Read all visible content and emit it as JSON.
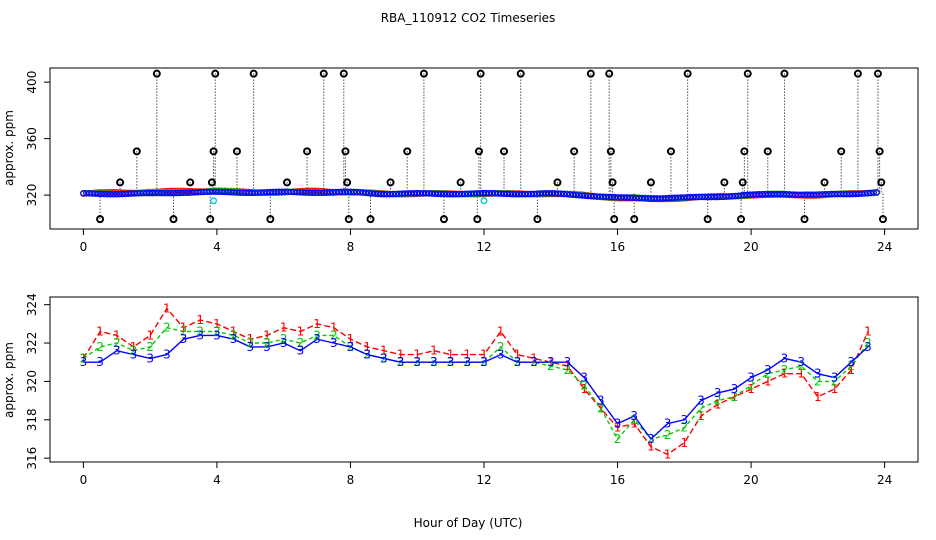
{
  "chart_data": [
    {
      "type": "scatter",
      "title": "RBA_110912  CO2 Timeseries",
      "xlabel": "",
      "ylabel": "approx. ppm",
      "xlim": [
        -1,
        25
      ],
      "ylim": [
        296,
        410
      ],
      "xticks": [
        0,
        4,
        8,
        12,
        16,
        20,
        24
      ],
      "yticks": [
        320,
        360,
        400
      ],
      "colors": {
        "series1": "#ff0000",
        "series2": "#00cc00",
        "series3": "#0000ff",
        "flag": "#00cccc",
        "outlier": "#000000"
      },
      "series": [
        {
          "name": "1",
          "x": [
            0,
            1,
            2,
            3,
            4,
            5,
            6,
            7,
            8,
            9,
            10,
            11,
            12,
            13,
            14,
            15,
            16,
            17,
            18,
            19,
            20,
            21,
            22,
            23,
            23.8
          ],
          "y": [
            321,
            322,
            322,
            323,
            323,
            322,
            322,
            323,
            322,
            321,
            321,
            321,
            321,
            321,
            321,
            320,
            318,
            317,
            318,
            319,
            320,
            320,
            320,
            321,
            322
          ]
        },
        {
          "name": "2",
          "x": [
            0,
            1,
            2,
            3,
            4,
            5,
            6,
            7,
            8,
            9,
            10,
            11,
            12,
            13,
            14,
            15,
            16,
            17,
            18,
            19,
            20,
            21,
            22,
            23,
            23.8
          ],
          "y": [
            321,
            321,
            322,
            322,
            323,
            322,
            322,
            322,
            322,
            321,
            321,
            321,
            321,
            321,
            321,
            320,
            318,
            318,
            318,
            319,
            320,
            321,
            320,
            321,
            322
          ]
        },
        {
          "name": "3",
          "x": [
            0,
            1,
            2,
            3,
            4,
            5,
            6,
            7,
            8,
            9,
            10,
            11,
            12,
            13,
            14,
            15,
            16,
            17,
            18,
            19,
            20,
            21,
            22,
            23,
            23.8
          ],
          "y": [
            321,
            321,
            321,
            322,
            322,
            322,
            322,
            322,
            322,
            321,
            321,
            321,
            321,
            321,
            321,
            320,
            318,
            318,
            318,
            319,
            320,
            321,
            320,
            321,
            322
          ]
        }
      ],
      "flagged": [
        {
          "x": 3.9,
          "y": 316
        },
        {
          "x": 12.0,
          "y": 316
        }
      ],
      "outliers": [
        {
          "x": 0.5,
          "y": 303
        },
        {
          "x": 1.1,
          "y": 329
        },
        {
          "x": 1.6,
          "y": 351
        },
        {
          "x": 2.2,
          "y": 406
        },
        {
          "x": 2.7,
          "y": 303
        },
        {
          "x": 3.2,
          "y": 329
        },
        {
          "x": 3.8,
          "y": 303
        },
        {
          "x": 3.85,
          "y": 329
        },
        {
          "x": 3.9,
          "y": 351
        },
        {
          "x": 3.95,
          "y": 406
        },
        {
          "x": 4.6,
          "y": 351
        },
        {
          "x": 5.1,
          "y": 406
        },
        {
          "x": 5.6,
          "y": 303
        },
        {
          "x": 6.1,
          "y": 329
        },
        {
          "x": 6.7,
          "y": 351
        },
        {
          "x": 7.2,
          "y": 406
        },
        {
          "x": 7.8,
          "y": 406
        },
        {
          "x": 7.85,
          "y": 351
        },
        {
          "x": 7.9,
          "y": 329
        },
        {
          "x": 7.95,
          "y": 303
        },
        {
          "x": 8.6,
          "y": 303
        },
        {
          "x": 9.2,
          "y": 329
        },
        {
          "x": 9.7,
          "y": 351
        },
        {
          "x": 10.2,
          "y": 406
        },
        {
          "x": 10.8,
          "y": 303
        },
        {
          "x": 11.3,
          "y": 329
        },
        {
          "x": 11.8,
          "y": 303
        },
        {
          "x": 11.85,
          "y": 351
        },
        {
          "x": 11.9,
          "y": 406
        },
        {
          "x": 12.6,
          "y": 351
        },
        {
          "x": 13.1,
          "y": 406
        },
        {
          "x": 13.6,
          "y": 303
        },
        {
          "x": 14.2,
          "y": 329
        },
        {
          "x": 14.7,
          "y": 351
        },
        {
          "x": 15.2,
          "y": 406
        },
        {
          "x": 15.75,
          "y": 406
        },
        {
          "x": 15.8,
          "y": 351
        },
        {
          "x": 15.85,
          "y": 329
        },
        {
          "x": 15.9,
          "y": 303
        },
        {
          "x": 16.5,
          "y": 303
        },
        {
          "x": 17.0,
          "y": 329
        },
        {
          "x": 17.6,
          "y": 351
        },
        {
          "x": 18.1,
          "y": 406
        },
        {
          "x": 18.7,
          "y": 303
        },
        {
          "x": 19.2,
          "y": 329
        },
        {
          "x": 19.7,
          "y": 303
        },
        {
          "x": 19.75,
          "y": 329
        },
        {
          "x": 19.8,
          "y": 351
        },
        {
          "x": 19.9,
          "y": 406
        },
        {
          "x": 20.5,
          "y": 351
        },
        {
          "x": 21.0,
          "y": 406
        },
        {
          "x": 21.6,
          "y": 303
        },
        {
          "x": 22.2,
          "y": 329
        },
        {
          "x": 22.7,
          "y": 351
        },
        {
          "x": 23.2,
          "y": 406
        },
        {
          "x": 23.8,
          "y": 406
        },
        {
          "x": 23.85,
          "y": 351
        },
        {
          "x": 23.9,
          "y": 329
        },
        {
          "x": 23.95,
          "y": 303
        }
      ]
    },
    {
      "type": "line",
      "title": "",
      "xlabel": "Hour of Day (UTC)",
      "ylabel": "approx. ppm",
      "xlim": [
        -1,
        25
      ],
      "ylim": [
        315.8,
        324.4
      ],
      "xticks": [
        0,
        4,
        8,
        12,
        16,
        20,
        24
      ],
      "yticks": [
        316,
        318,
        320,
        322,
        324
      ],
      "colors": {
        "series1": "#ff0000",
        "series2": "#00cc00",
        "series3": "#0000ff"
      },
      "series": [
        {
          "name": "1",
          "marker": "1",
          "x": [
            0,
            0.5,
            1,
            1.5,
            2,
            2.5,
            3,
            3.5,
            4,
            4.5,
            5,
            5.5,
            6,
            6.5,
            7,
            7.5,
            8,
            8.5,
            9,
            9.5,
            10,
            10.5,
            11,
            11.5,
            12,
            12.5,
            13,
            13.5,
            14,
            14.5,
            15,
            15.5,
            16,
            16.5,
            17,
            17.5,
            18,
            18.5,
            19,
            19.5,
            20,
            20.5,
            21,
            21.5,
            22,
            22.5,
            23,
            23.5
          ],
          "y": [
            321.2,
            322.6,
            322.4,
            321.8,
            322.4,
            323.8,
            322.8,
            323.2,
            323.0,
            322.6,
            322.2,
            322.4,
            322.8,
            322.6,
            323.0,
            322.8,
            322.2,
            321.8,
            321.6,
            321.4,
            321.4,
            321.6,
            321.4,
            321.4,
            321.4,
            322.6,
            321.4,
            321.2,
            321.0,
            320.8,
            319.6,
            318.6,
            317.6,
            317.8,
            316.6,
            316.2,
            316.8,
            318.2,
            318.8,
            319.2,
            319.6,
            320.0,
            320.4,
            320.4,
            319.2,
            319.6,
            320.6,
            322.6
          ]
        },
        {
          "name": "2",
          "marker": "2",
          "x": [
            0,
            0.5,
            1,
            1.5,
            2,
            2.5,
            3,
            3.5,
            4,
            4.5,
            5,
            5.5,
            6,
            6.5,
            7,
            7.5,
            8,
            8.5,
            9,
            9.5,
            10,
            10.5,
            11,
            11.5,
            12,
            12.5,
            13,
            13.5,
            14,
            14.5,
            15,
            15.5,
            16,
            16.5,
            17,
            17.5,
            18,
            18.5,
            19,
            19.5,
            20,
            20.5,
            21,
            21.5,
            22,
            22.5,
            23,
            23.5
          ],
          "y": [
            321.2,
            321.8,
            322.0,
            321.6,
            321.8,
            322.8,
            322.6,
            322.6,
            322.6,
            322.4,
            322.0,
            322.0,
            322.2,
            322.0,
            322.4,
            322.4,
            321.8,
            321.4,
            321.2,
            321.0,
            321.0,
            321.0,
            321.0,
            321.0,
            321.0,
            321.8,
            321.0,
            321.0,
            320.8,
            320.6,
            319.8,
            318.6,
            317.0,
            318.0,
            317.0,
            317.2,
            317.6,
            318.6,
            319.0,
            319.2,
            319.8,
            320.4,
            320.6,
            320.8,
            320.0,
            320.0,
            320.8,
            322.0
          ]
        },
        {
          "name": "3",
          "marker": "3",
          "x": [
            0,
            0.5,
            1,
            1.5,
            2,
            2.5,
            3,
            3.5,
            4,
            4.5,
            5,
            5.5,
            6,
            6.5,
            7,
            7.5,
            8,
            8.5,
            9,
            9.5,
            10,
            10.5,
            11,
            11.5,
            12,
            12.5,
            13,
            13.5,
            14,
            14.5,
            15,
            15.5,
            16,
            16.5,
            17,
            17.5,
            18,
            18.5,
            19,
            19.5,
            20,
            20.5,
            21,
            21.5,
            22,
            22.5,
            23,
            23.5
          ],
          "y": [
            321.0,
            321.0,
            321.6,
            321.4,
            321.2,
            321.4,
            322.2,
            322.4,
            322.4,
            322.2,
            321.8,
            321.8,
            322.0,
            321.6,
            322.2,
            322.0,
            321.8,
            321.4,
            321.2,
            321.0,
            321.0,
            321.0,
            321.0,
            321.0,
            321.0,
            321.4,
            321.0,
            321.0,
            321.0,
            321.0,
            320.2,
            319.0,
            317.8,
            318.2,
            317.0,
            317.8,
            318.0,
            319.0,
            319.4,
            319.6,
            320.2,
            320.6,
            321.2,
            321.0,
            320.4,
            320.2,
            321.0,
            321.8
          ]
        }
      ]
    }
  ]
}
